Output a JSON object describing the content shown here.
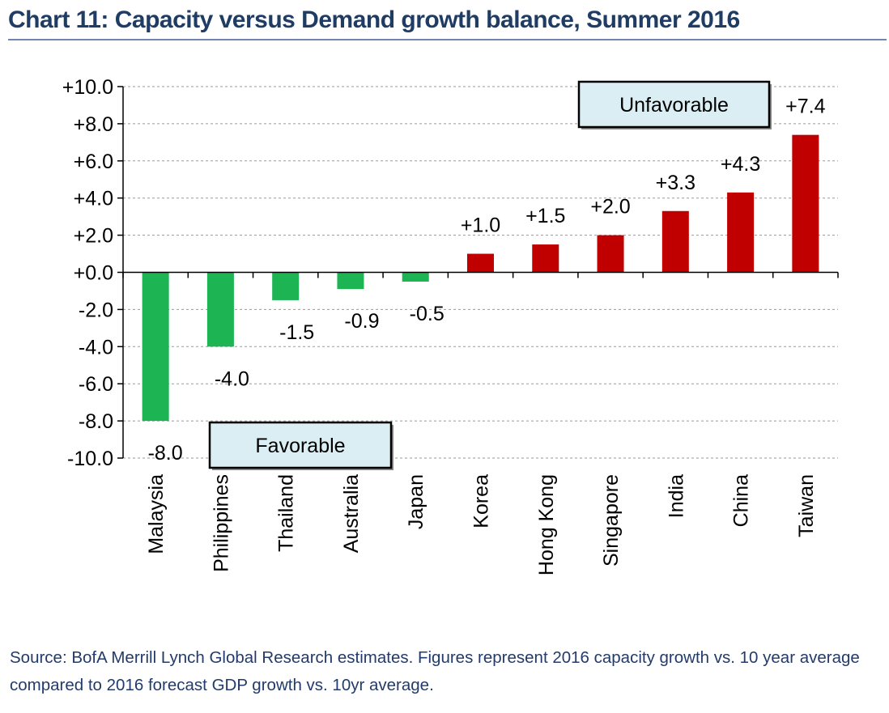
{
  "title": "Chart 11: Capacity versus Demand growth balance, Summer 2016",
  "source": "Source: BofA Merrill Lynch Global Research estimates.  Figures represent 2016 capacity growth vs. 10 year average compared to 2016 forecast GDP growth vs. 10yr average.",
  "colors": {
    "favorable": "#1db454",
    "unfavorable": "#c00000",
    "box_fill": "#daeef3",
    "gridline": "#9a9a9a"
  },
  "chart_data": {
    "type": "bar",
    "title": "Chart 11: Capacity versus Demand growth balance, Summer 2016",
    "xlabel": "",
    "ylabel": "",
    "ylim": [
      -10,
      10
    ],
    "yticks": [
      10,
      8,
      6,
      4,
      2,
      0,
      -2,
      -4,
      -6,
      -8,
      -10
    ],
    "ytick_labels": [
      "+10.0",
      "+8.0",
      "+6.0",
      "+4.0",
      "+2.0",
      "+0.0",
      "-2.0",
      "-4.0",
      "-6.0",
      "-8.0",
      "-10.0"
    ],
    "grid": true,
    "categories": [
      "Malaysia",
      "Philippines",
      "Thailand",
      "Australia",
      "Japan",
      "Korea",
      "Hong Kong",
      "Singapore",
      "India",
      "China",
      "Taiwan"
    ],
    "values": [
      -8.0,
      -4.0,
      -1.5,
      -0.9,
      -0.5,
      1.0,
      1.5,
      2.0,
      3.3,
      4.3,
      7.4
    ],
    "data_labels": [
      "-8.0",
      "-4.0",
      "-1.5",
      "-0.9",
      "-0.5",
      "+1.0",
      "+1.5",
      "+2.0",
      "+3.3",
      "+4.3",
      "+7.4"
    ],
    "annotations": [
      "Unfavorable",
      "Favorable"
    ]
  }
}
